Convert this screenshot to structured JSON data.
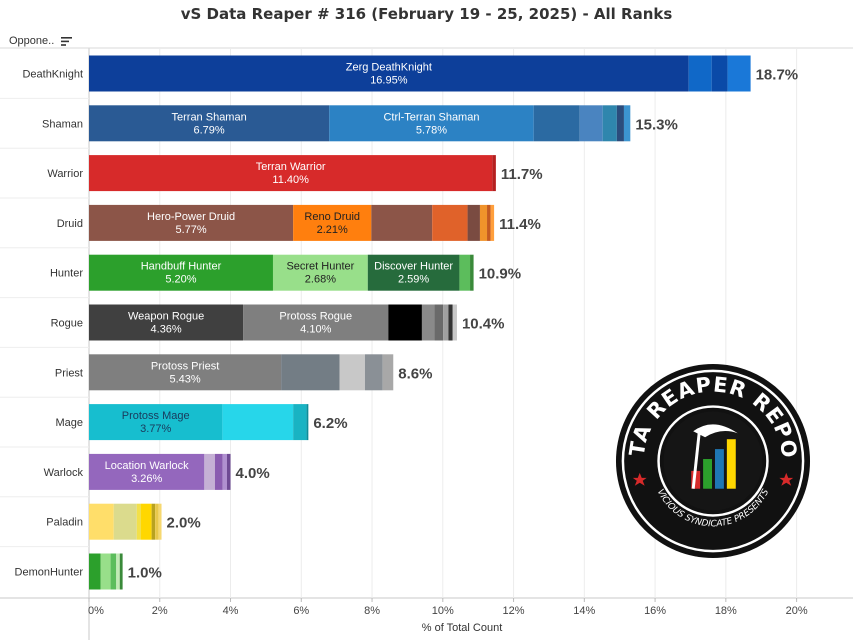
{
  "title": "vS Data Reaper # 316 (February 19 - 25, 2025) - All Ranks",
  "header": {
    "opponent_label": "Oppone.."
  },
  "logo": {
    "top_text": "DATA REAPER REPORT",
    "bottom_text": "VICIOUS SYNDICATE PRESENTS"
  },
  "chart_data": {
    "type": "bar",
    "orientation": "horizontal",
    "stacked": true,
    "xlabel": "% of Total Count",
    "ylabel": "",
    "xlim": [
      0,
      21
    ],
    "ticks": [
      0,
      2,
      4,
      6,
      8,
      10,
      12,
      14,
      16,
      18,
      20
    ],
    "tick_labels": [
      "0%",
      "2%",
      "4%",
      "6%",
      "8%",
      "10%",
      "12%",
      "14%",
      "16%",
      "18%",
      "20%"
    ],
    "grid": true,
    "categories": [
      {
        "name": "DeathKnight",
        "total_label": "18.7%",
        "segments": [
          {
            "label": "Zerg DeathKnight",
            "value": 16.95,
            "value_label": "16.95%",
            "color": "#0d3f9a"
          },
          {
            "value": 0.65,
            "color": "#1068c8"
          },
          {
            "value": 0.45,
            "color": "#0a4aa8"
          },
          {
            "value": 0.65,
            "color": "#1a78d8"
          }
        ]
      },
      {
        "name": "Shaman",
        "total_label": "15.3%",
        "segments": [
          {
            "label": "Terran Shaman",
            "value": 6.79,
            "value_label": "6.79%",
            "color": "#2a5a94"
          },
          {
            "label": "Ctrl-Terran Shaman",
            "value": 5.78,
            "value_label": "5.78%",
            "color": "#2c82c4"
          },
          {
            "value": 1.3,
            "color": "#2b6aa2"
          },
          {
            "value": 0.65,
            "color": "#4a84c0"
          },
          {
            "value": 0.4,
            "color": "#2f86ad"
          },
          {
            "value": 0.2,
            "color": "#2b4c7c"
          },
          {
            "value": 0.18,
            "color": "#3c94d0"
          }
        ]
      },
      {
        "name": "Warrior",
        "total_label": "11.7%",
        "segments": [
          {
            "label": "Terran Warrior",
            "value": 11.4,
            "value_label": "11.40%",
            "color": "#d72a2a"
          },
          {
            "value": 0.1,
            "color": "#b52020"
          }
        ]
      },
      {
        "name": "Druid",
        "total_label": "11.4%",
        "segments": [
          {
            "label": "Hero-Power Druid",
            "value": 5.77,
            "value_label": "5.77%",
            "color": "#8c5548"
          },
          {
            "label": "Reno Druid",
            "value": 2.21,
            "value_label": "2.21%",
            "color": "#ff7f0e",
            "text_color": "#222222"
          },
          {
            "value": 1.72,
            "color": "#8c5548"
          },
          {
            "value": 1.0,
            "color": "#e0622a"
          },
          {
            "value": 0.35,
            "color": "#7a4b41"
          },
          {
            "value": 0.2,
            "color": "#f0932b"
          },
          {
            "value": 0.1,
            "color": "#c45a20"
          },
          {
            "value": 0.1,
            "color": "#ff9f3c"
          }
        ]
      },
      {
        "name": "Hunter",
        "total_label": "10.9%",
        "segments": [
          {
            "label": "Handbuff Hunter",
            "value": 5.2,
            "value_label": "5.20%",
            "color": "#2ca02c"
          },
          {
            "label": "Secret Hunter",
            "value": 2.68,
            "value_label": "2.68%",
            "color": "#98df8a",
            "text_color": "#222222"
          },
          {
            "label": "Discover Hunter",
            "value": 2.59,
            "value_label": "2.59%",
            "color": "#266b3c"
          },
          {
            "value": 0.3,
            "color": "#5cbd5c"
          },
          {
            "value": 0.1,
            "color": "#3a8a3a"
          }
        ]
      },
      {
        "name": "Rogue",
        "total_label": "10.4%",
        "segments": [
          {
            "label": "Weapon Rogue",
            "value": 4.36,
            "value_label": "4.36%",
            "color": "#404040"
          },
          {
            "label": "Protoss Rogue",
            "value": 4.1,
            "value_label": "4.10%",
            "color": "#7f7f7f"
          },
          {
            "value": 0.95,
            "color": "#000000"
          },
          {
            "value": 0.35,
            "color": "#8a8a8a"
          },
          {
            "value": 0.25,
            "color": "#6a6a6a"
          },
          {
            "value": 0.15,
            "color": "#a0a0a0"
          },
          {
            "value": 0.12,
            "color": "#333333"
          },
          {
            "value": 0.12,
            "color": "#c8c8c8"
          }
        ]
      },
      {
        "name": "Priest",
        "total_label": "8.6%",
        "segments": [
          {
            "label": "Protoss Priest",
            "value": 5.43,
            "value_label": "5.43%",
            "color": "#7f7f7f"
          },
          {
            "value": 1.65,
            "color": "#737d85"
          },
          {
            "value": 0.72,
            "color": "#c8c8c8"
          },
          {
            "value": 0.5,
            "color": "#8a9096"
          },
          {
            "value": 0.3,
            "color": "#a8a8a8"
          }
        ]
      },
      {
        "name": "Mage",
        "total_label": "6.2%",
        "segments": [
          {
            "label": "Protoss Mage",
            "value": 3.77,
            "value_label": "3.77%",
            "color": "#17becf",
            "text_color": "#1a3a5c"
          },
          {
            "value": 2.0,
            "color": "#27d6ea"
          },
          {
            "value": 0.38,
            "color": "#19b3c3"
          },
          {
            "value": 0.05,
            "color": "#0e8c99"
          }
        ]
      },
      {
        "name": "Warlock",
        "total_label": "4.0%",
        "segments": [
          {
            "label": "Location Warlock",
            "value": 3.26,
            "value_label": "3.26%",
            "color": "#9467bd"
          },
          {
            "value": 0.3,
            "color": "#c5b0d5"
          },
          {
            "value": 0.22,
            "color": "#8a5cb0"
          },
          {
            "value": 0.12,
            "color": "#b090d0"
          },
          {
            "value": 0.1,
            "color": "#6f4a94"
          }
        ]
      },
      {
        "name": "Paladin",
        "total_label": "2.0%",
        "segments": [
          {
            "value": 0.7,
            "color": "#ffde6a"
          },
          {
            "value": 0.65,
            "color": "#dbdb8d"
          },
          {
            "value": 0.12,
            "color": "#f2e04a"
          },
          {
            "value": 0.3,
            "color": "#ffd700"
          },
          {
            "value": 0.1,
            "color": "#b8a220"
          },
          {
            "value": 0.1,
            "color": "#e8c84a"
          },
          {
            "value": 0.08,
            "color": "#f6d870"
          }
        ]
      },
      {
        "name": "DemonHunter",
        "total_label": "1.0%",
        "segments": [
          {
            "value": 0.33,
            "color": "#2ca02c"
          },
          {
            "value": 0.28,
            "color": "#98df8a"
          },
          {
            "value": 0.16,
            "color": "#5cbd5c"
          },
          {
            "value": 0.1,
            "color": "#c2eab5"
          },
          {
            "value": 0.08,
            "color": "#3a8a3a"
          }
        ]
      }
    ]
  }
}
